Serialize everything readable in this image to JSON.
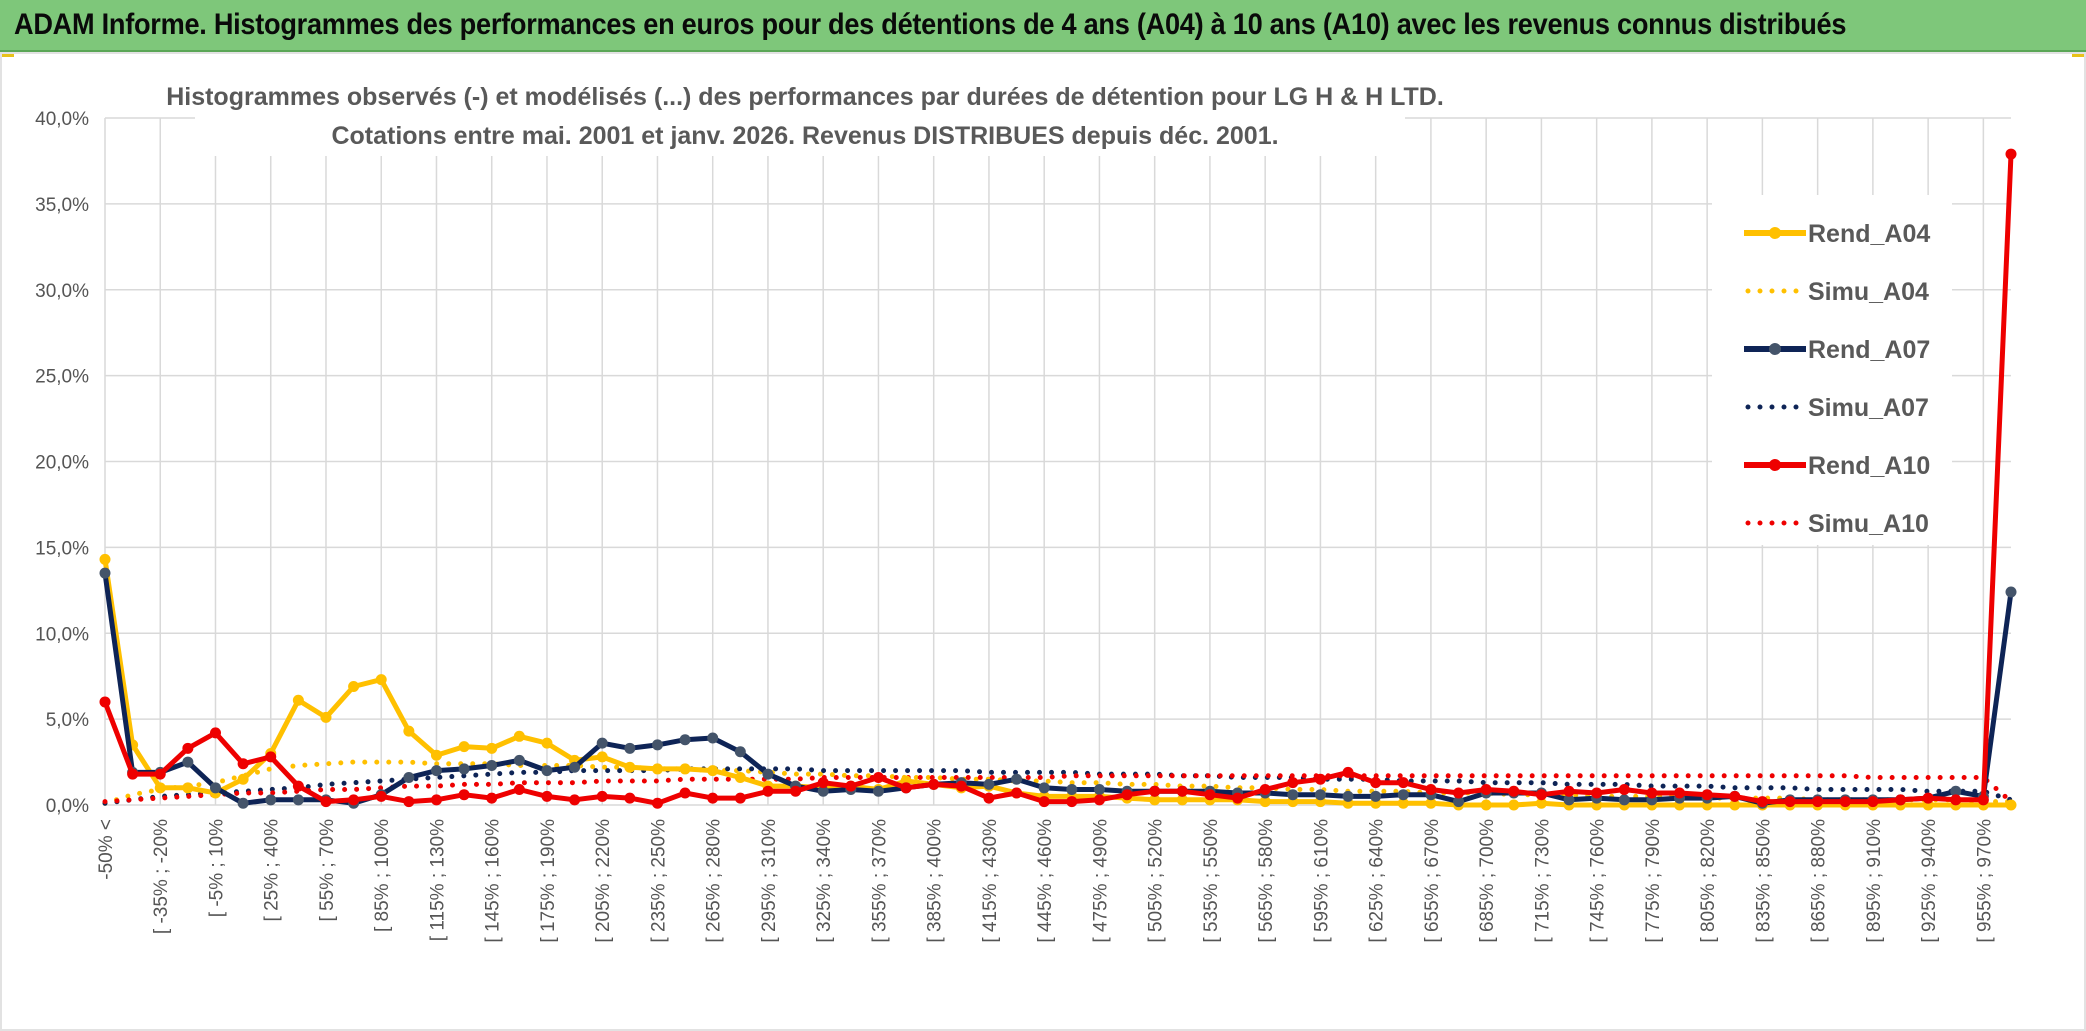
{
  "banner": {
    "title": "ADAM Informe. Histogrammes des performances en euros pour des détentions de 4 ans (A04) à 10 ans (A10) avec les revenus connus distribués"
  },
  "colors": {
    "banner_bg": "#7ec77a",
    "A04": "#ffc000",
    "A07": "#0e2456",
    "A10": "#ee0000",
    "grid": "#d9d9d9"
  },
  "chart_data": {
    "type": "line",
    "title": [
      "Histogrammes observés (-) et modélisés (...) des performances par durées de détention pour LG H & H LTD.",
      "Cotations entre mai. 2001 et janv. 2026. Revenus DISTRIBUES depuis déc. 2001."
    ],
    "xlabel": "",
    "ylabel": "",
    "ylim": [
      0,
      40
    ],
    "y_ticks": [
      "0,0%",
      "5,0%",
      "10,0%",
      "15,0%",
      "20,0%",
      "25,0%",
      "30,0%",
      "35,0%",
      "40,0%"
    ],
    "grid": true,
    "legend_position": "right",
    "x_tick_labels": [
      "-50% <",
      "[ -35% ; -20%",
      "[ -5% ; 10%",
      "[ 25% ; 40%",
      "[ 55% ; 70%",
      "[ 85% ; 100%",
      "[ 115% ; 130%",
      "[ 145% ; 160%",
      "[ 175% ; 190%",
      "[ 205% ; 220%",
      "[ 235% ; 250%",
      "[ 265% ; 280%",
      "[ 295% ; 310%",
      "[ 325% ; 340%",
      "[ 355% ; 370%",
      "[ 385% ; 400%",
      "[ 415% ; 430%",
      "[ 445% ; 460%",
      "[ 475% ; 490%",
      "[ 505% ; 520%",
      "[ 535% ; 550%",
      "[ 565% ; 580%",
      "[ 595% ; 610%",
      "[ 625% ; 640%",
      "[ 655% ; 670%",
      "[ 685% ; 700%",
      "[ 715% ; 730%",
      "[ 745% ; 760%",
      "[ 775% ; 790%",
      "[ 805% ; 820%",
      "[ 835% ; 850%",
      "[ 865% ; 880%",
      "[ 895% ; 910%",
      "[ 925% ; 940%",
      "[ 955% ; 970%"
    ],
    "n_points": 70,
    "series": [
      {
        "name": "Rend_A04",
        "style": "solid",
        "color": "#ffc000",
        "values": [
          14.3,
          3.5,
          1.0,
          1.0,
          0.7,
          1.5,
          3.0,
          6.1,
          5.1,
          6.9,
          7.3,
          4.3,
          2.9,
          3.4,
          3.3,
          4.0,
          3.6,
          2.6,
          2.8,
          2.2,
          2.1,
          2.1,
          2.0,
          1.6,
          1.1,
          1.1,
          1.0,
          1.1,
          0.9,
          1.4,
          1.2,
          1.0,
          1.1,
          0.7,
          0.5,
          0.5,
          0.5,
          0.4,
          0.3,
          0.3,
          0.3,
          0.3,
          0.2,
          0.2,
          0.2,
          0.1,
          0.1,
          0.1,
          0.1,
          0.0,
          0.0,
          0.0,
          0.1,
          0.0,
          0.0,
          0.0,
          0.0,
          0.0,
          0.0,
          0.0,
          0.0,
          0.0,
          0.0,
          0.0,
          0.0,
          0.0,
          0.0,
          0.0,
          0.0,
          0.0
        ]
      },
      {
        "name": "Simu_A04",
        "style": "dotted",
        "color": "#ffc000",
        "values": [
          0.1,
          0.6,
          0.9,
          1.1,
          1.3,
          1.7,
          2.1,
          2.3,
          2.4,
          2.5,
          2.5,
          2.5,
          2.4,
          2.4,
          2.4,
          2.3,
          2.3,
          2.3,
          2.2,
          2.2,
          2.1,
          2.1,
          2.0,
          2.0,
          1.9,
          1.8,
          1.8,
          1.7,
          1.7,
          1.6,
          1.6,
          1.5,
          1.5,
          1.4,
          1.4,
          1.3,
          1.3,
          1.2,
          1.2,
          1.1,
          1.1,
          1.0,
          1.0,
          0.9,
          0.9,
          0.8,
          0.8,
          0.8,
          0.7,
          0.7,
          0.7,
          0.6,
          0.6,
          0.6,
          0.5,
          0.5,
          0.5,
          0.5,
          0.4,
          0.4,
          0.4,
          0.4,
          0.3,
          0.3,
          0.3,
          0.3,
          0.3,
          0.3,
          0.2,
          0.2
        ]
      },
      {
        "name": "Rend_A07",
        "style": "solid",
        "color": "#0e2456",
        "values": [
          13.5,
          1.9,
          1.9,
          2.5,
          1.0,
          0.1,
          0.3,
          0.3,
          0.3,
          0.1,
          0.6,
          1.6,
          2.0,
          2.1,
          2.3,
          2.6,
          2.0,
          2.2,
          3.6,
          3.3,
          3.5,
          3.8,
          3.9,
          3.1,
          1.8,
          1.1,
          0.8,
          0.9,
          0.8,
          1.0,
          1.2,
          1.3,
          1.2,
          1.5,
          1.0,
          0.9,
          0.9,
          0.8,
          0.8,
          0.8,
          0.8,
          0.7,
          0.7,
          0.6,
          0.6,
          0.5,
          0.5,
          0.6,
          0.6,
          0.2,
          0.7,
          0.7,
          0.7,
          0.3,
          0.4,
          0.3,
          0.3,
          0.4,
          0.4,
          0.5,
          0.1,
          0.3,
          0.3,
          0.3,
          0.3,
          0.3,
          0.4,
          0.8,
          0.5,
          12.4
        ]
      },
      {
        "name": "Simu_A07",
        "style": "dotted",
        "color": "#0e2456",
        "values": [
          0.1,
          0.3,
          0.5,
          0.6,
          0.7,
          0.8,
          0.9,
          1.0,
          1.2,
          1.3,
          1.4,
          1.5,
          1.6,
          1.7,
          1.8,
          1.9,
          1.9,
          2.0,
          2.0,
          2.0,
          2.0,
          2.1,
          2.1,
          2.1,
          2.1,
          2.1,
          2.0,
          2.0,
          2.0,
          2.0,
          2.0,
          2.0,
          1.9,
          1.9,
          1.9,
          1.9,
          1.8,
          1.8,
          1.8,
          1.7,
          1.7,
          1.6,
          1.6,
          1.6,
          1.5,
          1.5,
          1.5,
          1.4,
          1.4,
          1.4,
          1.3,
          1.3,
          1.3,
          1.2,
          1.2,
          1.2,
          1.1,
          1.1,
          1.1,
          1.0,
          1.0,
          1.0,
          0.9,
          0.9,
          0.9,
          0.9,
          0.8,
          0.8,
          0.8,
          0.3
        ]
      },
      {
        "name": "Rend_A10",
        "style": "solid",
        "color": "#ee0000",
        "values": [
          6.0,
          1.8,
          1.8,
          3.3,
          4.2,
          2.4,
          2.8,
          1.1,
          0.2,
          0.3,
          0.5,
          0.2,
          0.3,
          0.6,
          0.4,
          0.9,
          0.5,
          0.3,
          0.5,
          0.4,
          0.1,
          0.7,
          0.4,
          0.4,
          0.8,
          0.8,
          1.3,
          1.1,
          1.6,
          1.0,
          1.2,
          1.1,
          0.4,
          0.7,
          0.2,
          0.2,
          0.3,
          0.6,
          0.8,
          0.8,
          0.6,
          0.4,
          0.9,
          1.3,
          1.5,
          1.9,
          1.3,
          1.3,
          0.9,
          0.7,
          0.9,
          0.8,
          0.6,
          0.8,
          0.7,
          0.9,
          0.7,
          0.7,
          0.6,
          0.5,
          0.2,
          0.2,
          0.2,
          0.2,
          0.2,
          0.3,
          0.4,
          0.3,
          0.3,
          37.9
        ]
      },
      {
        "name": "Simu_A10",
        "style": "dotted",
        "color": "#ee0000",
        "values": [
          0.2,
          0.3,
          0.4,
          0.5,
          0.6,
          0.7,
          0.7,
          0.8,
          0.9,
          0.9,
          1.0,
          1.1,
          1.1,
          1.2,
          1.2,
          1.3,
          1.3,
          1.3,
          1.4,
          1.4,
          1.4,
          1.5,
          1.5,
          1.5,
          1.5,
          1.5,
          1.6,
          1.6,
          1.6,
          1.6,
          1.6,
          1.6,
          1.6,
          1.6,
          1.6,
          1.7,
          1.7,
          1.7,
          1.7,
          1.7,
          1.7,
          1.7,
          1.7,
          1.7,
          1.7,
          1.7,
          1.7,
          1.7,
          1.7,
          1.7,
          1.7,
          1.7,
          1.7,
          1.7,
          1.7,
          1.7,
          1.7,
          1.7,
          1.7,
          1.7,
          1.7,
          1.7,
          1.7,
          1.7,
          1.6,
          1.6,
          1.6,
          1.6,
          1.6,
          0.2
        ]
      }
    ]
  }
}
